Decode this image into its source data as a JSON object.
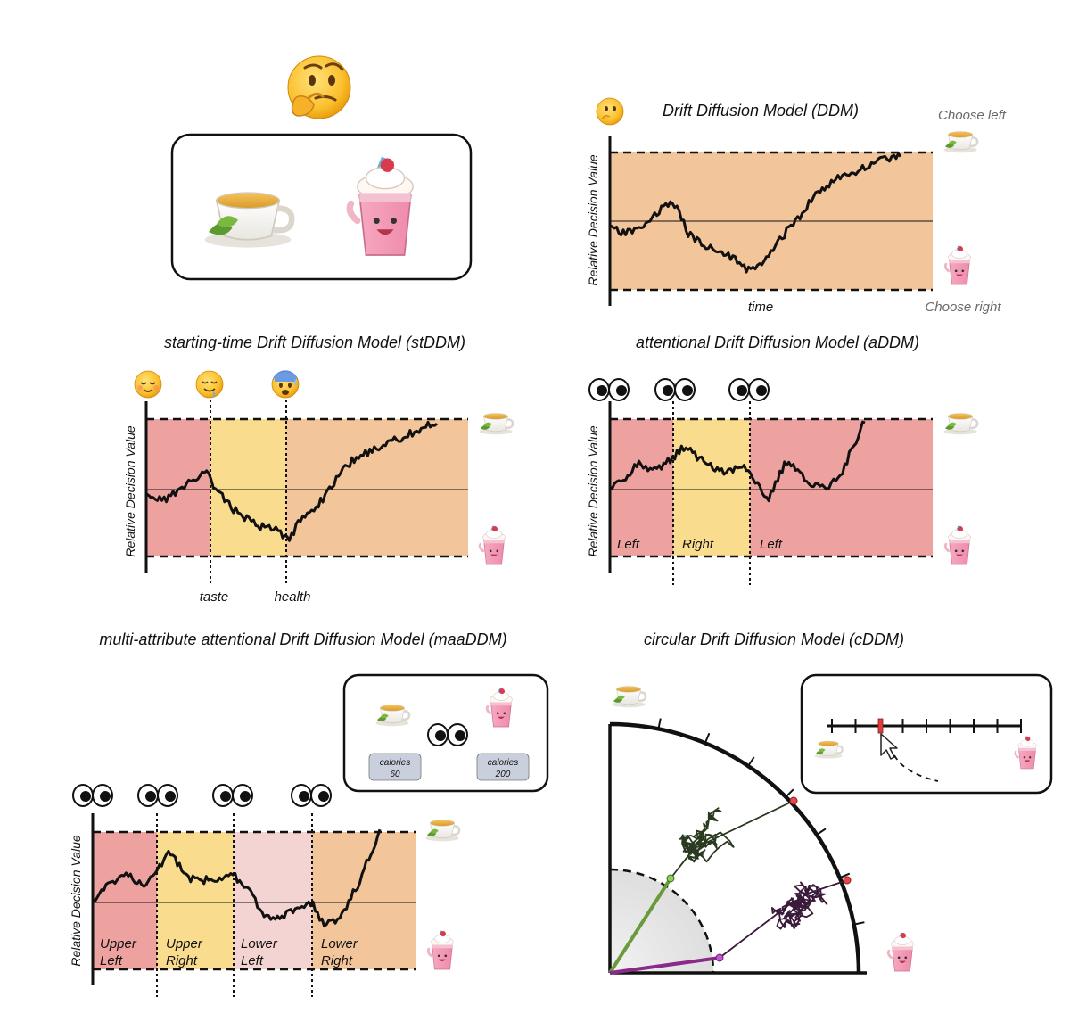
{
  "ddm": {
    "title": "Drift Diffusion Model (DDM)",
    "ylabel": "Relative Decision Value",
    "xlabel": "time",
    "choose_left": "Choose left",
    "choose_right": "Choose right"
  },
  "stddm": {
    "title": "starting-time Drift Diffusion Model (stDDM)",
    "ylabel": "Relative Decision Value",
    "markers": [
      "taste",
      "health"
    ]
  },
  "addm": {
    "title": "attentional Drift Diffusion Model (aDDM)",
    "ylabel": "Relative Decision Value",
    "regions": [
      "Left",
      "Right",
      "Left"
    ]
  },
  "maaddm": {
    "title": "multi-attribute attentional Drift Diffusion Model (maaDDM)",
    "ylabel": "Relative Decision Value",
    "regions": [
      {
        "l1": "Upper",
        "l2": "Left"
      },
      {
        "l1": "Upper",
        "l2": "Right"
      },
      {
        "l1": "Lower",
        "l2": "Left"
      },
      {
        "l1": "Lower",
        "l2": "Right"
      }
    ],
    "calories_label": "calories",
    "calories_tea": "60",
    "calories_shake": "200"
  },
  "cddm": {
    "title": "circular Drift Diffusion Model (cDDM)"
  },
  "colors": {
    "orange": "#f3c59a",
    "red": "#eda2a0",
    "yellow": "#f9dc8e",
    "pink": "#f4d3d3"
  },
  "icons": [
    "thinking-face",
    "tea-cup",
    "milkshake",
    "relieved-face",
    "drooling-face",
    "anxious-face",
    "eyes"
  ]
}
